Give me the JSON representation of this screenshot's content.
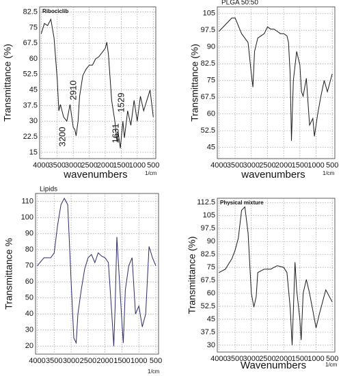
{
  "chart_data": [
    {
      "type": "line",
      "title": "Ribociclib",
      "x_label": "wavenumbers",
      "x_unit": "1/cm",
      "y_label": "Transmittance (%)",
      "annotations": [
        "3200",
        "2910",
        "1631",
        "1529"
      ],
      "xlim": [
        4050,
        420
      ],
      "xticks": [
        4000,
        3500,
        3000,
        2500,
        2000,
        1500,
        1000,
        500
      ],
      "ylim": [
        12,
        85
      ],
      "yticks": [
        82.5,
        75,
        67.5,
        60,
        52.5,
        45,
        37.5,
        30,
        22.5,
        15
      ],
      "grid": true,
      "color": "#1a1a1a",
      "x": [
        4000,
        3900,
        3800,
        3700,
        3600,
        3500,
        3450,
        3400,
        3300,
        3200,
        3100,
        3000,
        2950,
        2910,
        2850,
        2800,
        2700,
        2600,
        2500,
        2400,
        2300,
        2200,
        2100,
        2000,
        1950,
        1900,
        1800,
        1700,
        1631,
        1600,
        1529,
        1450,
        1400,
        1300,
        1200,
        1100,
        1000,
        900,
        800,
        700,
        600,
        500
      ],
      "values": [
        72,
        77,
        76,
        79,
        70,
        50,
        35,
        38,
        32,
        30,
        38,
        27,
        26,
        23,
        30,
        42,
        52,
        55,
        57,
        57,
        60,
        61,
        63,
        65,
        68,
        62,
        40,
        30,
        20,
        25,
        17,
        30,
        22,
        35,
        28,
        40,
        30,
        42,
        35,
        40,
        45,
        32
      ]
    },
    {
      "type": "line",
      "title": "PLGA 50:50",
      "x_label": "wavenumbers",
      "x_unit": "1/cm",
      "y_label": "Transmittance (%)",
      "xlim": [
        4050,
        420
      ],
      "xticks": [
        4000,
        3500,
        3000,
        2500,
        2000,
        1500,
        1000,
        500
      ],
      "ylim": [
        40,
        108
      ],
      "yticks": [
        105,
        97.5,
        90,
        82.5,
        75,
        67.5,
        60,
        52.5,
        45
      ],
      "grid": true,
      "color": "#1a1a1a",
      "x": [
        4000,
        3800,
        3600,
        3500,
        3300,
        3100,
        3000,
        2950,
        2900,
        2800,
        2600,
        2500,
        2400,
        2300,
        2200,
        2100,
        2000,
        1900,
        1850,
        1800,
        1760,
        1700,
        1600,
        1500,
        1450,
        1400,
        1300,
        1200,
        1100,
        1050,
        950,
        850,
        750,
        650,
        500
      ],
      "values": [
        97,
        100,
        103,
        103,
        96,
        92,
        78,
        72,
        88,
        94,
        96,
        99,
        98,
        98,
        97,
        96,
        96,
        95,
        92,
        78,
        48,
        75,
        88,
        82,
        70,
        68,
        76,
        55,
        58,
        50,
        60,
        68,
        75,
        70,
        78
      ]
    },
    {
      "type": "line",
      "title": "Lipids",
      "x_unit": "1/cm",
      "y_label": "Transmittance %",
      "xlim": [
        4050,
        420
      ],
      "xticks": [
        4000,
        3500,
        3000,
        2500,
        2000,
        1500,
        1000,
        500
      ],
      "ylim": [
        15,
        115
      ],
      "yticks": [
        110,
        100,
        90,
        80,
        70,
        60,
        50,
        40,
        30,
        20
      ],
      "grid": true,
      "color": "#2a2a6a",
      "x": [
        4000,
        3800,
        3600,
        3500,
        3400,
        3300,
        3200,
        3100,
        3000,
        2920,
        2850,
        2800,
        2700,
        2600,
        2500,
        2400,
        2300,
        2200,
        2100,
        2000,
        1900,
        1800,
        1740,
        1700,
        1650,
        1600,
        1500,
        1460,
        1400,
        1300,
        1200,
        1100,
        1000,
        900,
        800,
        700,
        600,
        500
      ],
      "values": [
        70,
        75,
        75,
        78,
        95,
        108,
        112,
        108,
        60,
        25,
        22,
        40,
        55,
        68,
        75,
        77,
        72,
        78,
        76,
        75,
        72,
        40,
        20,
        45,
        88,
        70,
        35,
        22,
        55,
        70,
        75,
        40,
        45,
        32,
        40,
        82,
        75,
        70
      ]
    },
    {
      "type": "line",
      "title": "Physical mixture",
      "x_label": "Wavenumbers",
      "x_unit": "1/cm",
      "y_label": "Transmittance (%)",
      "xlim": [
        4050,
        420
      ],
      "xticks": [
        4000,
        3500,
        3000,
        2500,
        2000,
        1500,
        1000,
        500
      ],
      "ylim": [
        26,
        115
      ],
      "yticks": [
        112.5,
        105,
        97.5,
        90,
        82.5,
        75,
        67.5,
        60,
        52.5,
        45,
        37.5,
        30
      ],
      "grid": true,
      "color": "#1a1a1a",
      "x": [
        4000,
        3800,
        3600,
        3500,
        3400,
        3300,
        3200,
        3100,
        3000,
        2920,
        2850,
        2800,
        2600,
        2400,
        2200,
        2000,
        1900,
        1800,
        1740,
        1700,
        1650,
        1600,
        1500,
        1460,
        1400,
        1300,
        1200,
        1100,
        1000,
        900,
        800,
        700,
        500
      ],
      "values": [
        72,
        74,
        80,
        85,
        92,
        108,
        110,
        95,
        60,
        52,
        58,
        72,
        74,
        74,
        76,
        75,
        72,
        52,
        30,
        50,
        78,
        62,
        45,
        33,
        60,
        68,
        60,
        50,
        40,
        48,
        55,
        62,
        55
      ]
    }
  ]
}
